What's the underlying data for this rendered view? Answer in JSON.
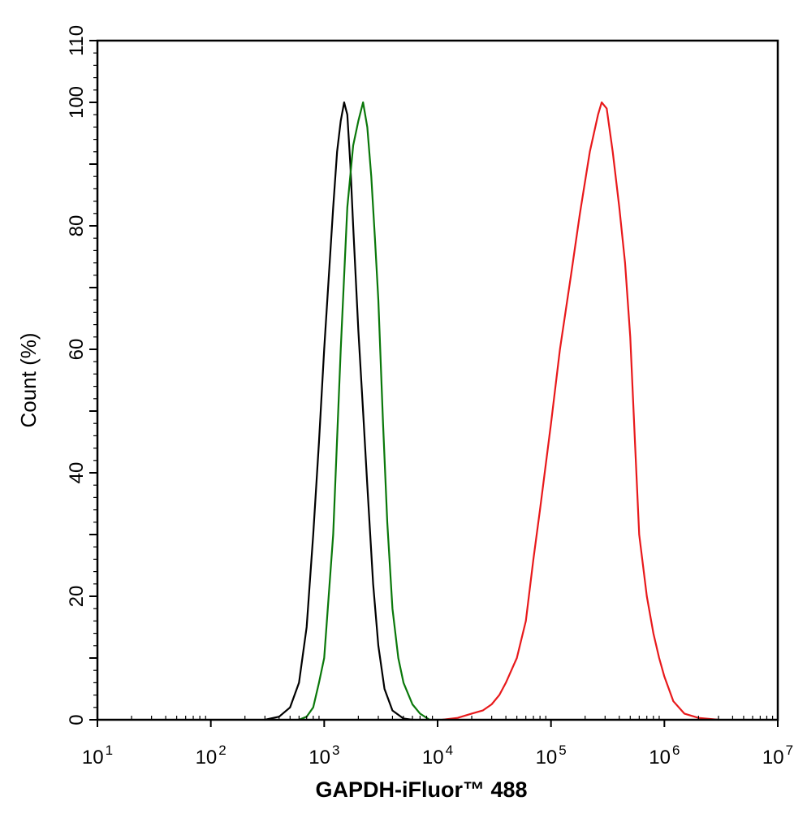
{
  "chart_data": {
    "type": "line",
    "title": "",
    "xlabel": "GAPDH-iFluor™ 488",
    "ylabel": "Count  (%)",
    "x_scale": "log",
    "xlim": [
      10,
      10000000
    ],
    "ylim": [
      0,
      110
    ],
    "x_ticks": [
      {
        "value": 10,
        "base": "10",
        "exp": "1"
      },
      {
        "value": 100,
        "base": "10",
        "exp": "2"
      },
      {
        "value": 1000,
        "base": "10",
        "exp": "3"
      },
      {
        "value": 10000,
        "base": "10",
        "exp": "4"
      },
      {
        "value": 100000,
        "base": "10",
        "exp": "5"
      },
      {
        "value": 1000000,
        "base": "10",
        "exp": "6"
      },
      {
        "value": 10000000,
        "base": "10",
        "exp": "7"
      }
    ],
    "y_ticks": [
      "0",
      "20",
      "40",
      "60",
      "80",
      "100",
      "110"
    ],
    "grid": false,
    "legend": "none",
    "series": [
      {
        "color": "#000000",
        "points": [
          [
            300,
            0
          ],
          [
            400,
            0.5
          ],
          [
            500,
            2
          ],
          [
            600,
            6
          ],
          [
            700,
            15
          ],
          [
            800,
            30
          ],
          [
            900,
            45
          ],
          [
            1000,
            60
          ],
          [
            1100,
            72
          ],
          [
            1200,
            83
          ],
          [
            1300,
            92
          ],
          [
            1400,
            97
          ],
          [
            1500,
            100
          ],
          [
            1600,
            98
          ],
          [
            1700,
            90
          ],
          [
            1800,
            80
          ],
          [
            2000,
            63
          ],
          [
            2200,
            50
          ],
          [
            2400,
            38
          ],
          [
            2700,
            22
          ],
          [
            3000,
            12
          ],
          [
            3400,
            5
          ],
          [
            4000,
            1.5
          ],
          [
            5000,
            0.2
          ],
          [
            6000,
            0
          ]
        ]
      },
      {
        "color": "#0a780a",
        "points": [
          [
            600,
            0
          ],
          [
            700,
            0.5
          ],
          [
            800,
            2
          ],
          [
            900,
            6
          ],
          [
            1000,
            10
          ],
          [
            1200,
            30
          ],
          [
            1400,
            60
          ],
          [
            1600,
            83
          ],
          [
            1800,
            93
          ],
          [
            2000,
            97
          ],
          [
            2200,
            100
          ],
          [
            2400,
            96
          ],
          [
            2600,
            88
          ],
          [
            2800,
            78
          ],
          [
            3000,
            68
          ],
          [
            3300,
            48
          ],
          [
            3600,
            32
          ],
          [
            4000,
            18
          ],
          [
            4500,
            10
          ],
          [
            5000,
            6
          ],
          [
            6000,
            2.5
          ],
          [
            7000,
            1
          ],
          [
            8500,
            0
          ]
        ]
      },
      {
        "color": "#e8191b",
        "points": [
          [
            11000,
            0
          ],
          [
            15000,
            0.3
          ],
          [
            20000,
            1
          ],
          [
            25000,
            1.5
          ],
          [
            30000,
            2.5
          ],
          [
            35000,
            4
          ],
          [
            40000,
            6
          ],
          [
            50000,
            10
          ],
          [
            60000,
            16
          ],
          [
            70000,
            26
          ],
          [
            80000,
            34
          ],
          [
            100000,
            48
          ],
          [
            120000,
            60
          ],
          [
            150000,
            72
          ],
          [
            180000,
            82
          ],
          [
            220000,
            92
          ],
          [
            260000,
            98
          ],
          [
            280000,
            100
          ],
          [
            310000,
            99
          ],
          [
            350000,
            92
          ],
          [
            400000,
            83
          ],
          [
            450000,
            74
          ],
          [
            500000,
            62
          ],
          [
            550000,
            45
          ],
          [
            600000,
            30
          ],
          [
            700000,
            20
          ],
          [
            800000,
            14
          ],
          [
            900000,
            10
          ],
          [
            1000000,
            7
          ],
          [
            1200000,
            3
          ],
          [
            1500000,
            1
          ],
          [
            2000000,
            0.3
          ],
          [
            3000000,
            0
          ]
        ]
      }
    ]
  }
}
